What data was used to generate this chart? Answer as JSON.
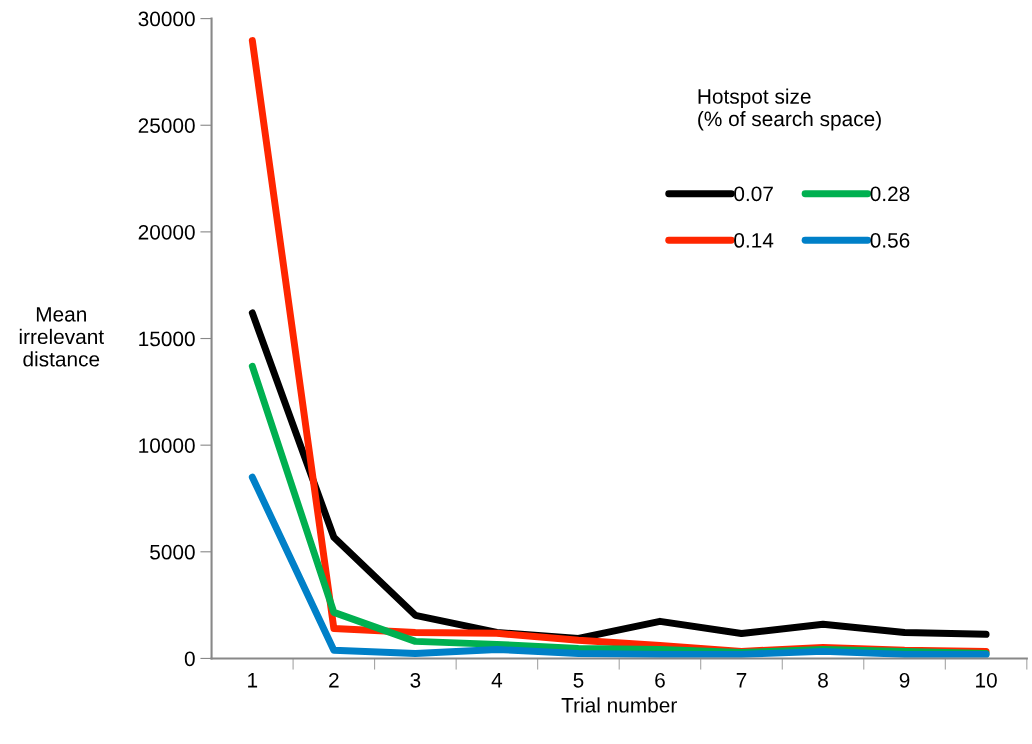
{
  "chart_data": {
    "type": "line",
    "xlabel": "Trial number",
    "ylabel": "Mean\nirrelevant\ndistance",
    "legend_title": "Hotspot size\n(% of search space)",
    "categories": [
      "1",
      "2",
      "3",
      "4",
      "5",
      "6",
      "7",
      "8",
      "9",
      "10"
    ],
    "ylim": [
      0,
      30000
    ],
    "yticks": [
      0,
      5000,
      10000,
      15000,
      20000,
      25000,
      30000
    ],
    "grid": false,
    "legend": "top right",
    "marker": "none",
    "line_style": "solid",
    "series": [
      {
        "name": "0.07",
        "color": "#000000",
        "values": [
          16200,
          5680,
          2020,
          1220,
          940,
          1740,
          1170,
          1600,
          1220,
          1130
        ]
      },
      {
        "name": "0.14",
        "color": "#ff2600",
        "values": [
          28970,
          1400,
          1220,
          1180,
          850,
          610,
          330,
          520,
          380,
          330
        ]
      },
      {
        "name": "0.28",
        "color": "#00b050",
        "values": [
          13700,
          2160,
          800,
          660,
          470,
          420,
          280,
          420,
          330,
          230
        ]
      },
      {
        "name": "0.56",
        "color": "#0080c8",
        "values": [
          8500,
          380,
          230,
          420,
          230,
          190,
          190,
          330,
          190,
          190
        ]
      }
    ]
  }
}
